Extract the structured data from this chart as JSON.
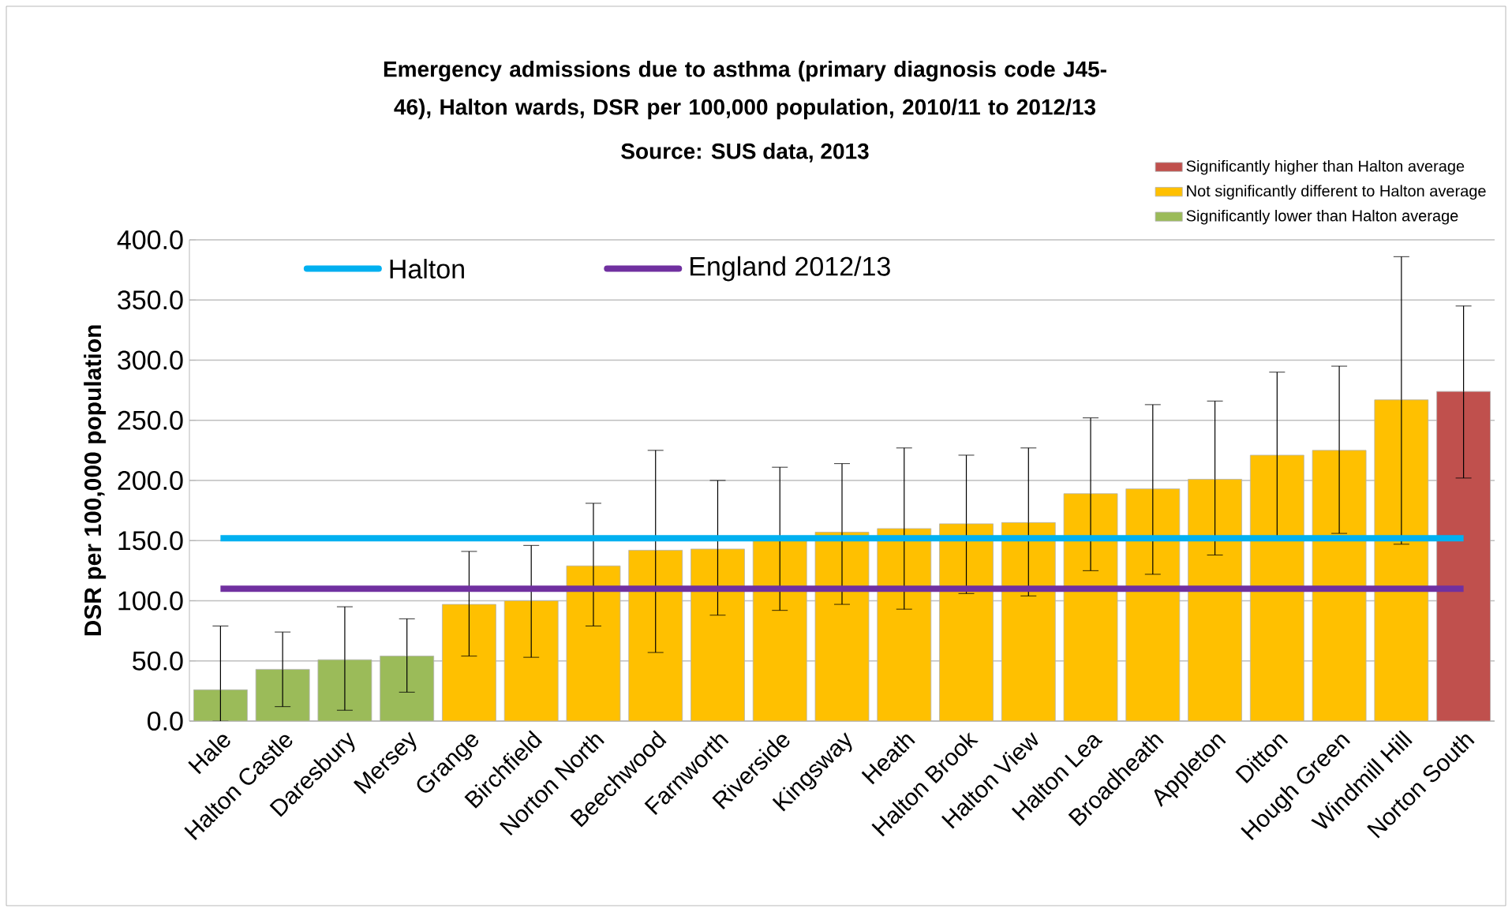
{
  "chart_data": {
    "type": "bar",
    "title": "Emergency admissions due to asthma (primary diagnosis code J45-46), Halton wards, DSR per 100,000 population, 2010/11 to 2012/13",
    "annotations": [
      "Source: SUS data, 2013"
    ],
    "ylabel": "DSR per 100,000 population",
    "categories": [
      "Hale",
      "Halton Castle",
      "Daresbury",
      "Mersey",
      "Grange",
      "Birchfield",
      "Norton North",
      "Beechwood",
      "Farnworth",
      "Riverside",
      "Kingsway",
      "Heath",
      "Halton Brook",
      "Halton View",
      "Halton Lea",
      "Broadheath",
      "Appleton",
      "Ditton",
      "Hough Green",
      "Windmill Hill",
      "Norton South"
    ],
    "series": [
      {
        "name": "Significantly higher than Halton average",
        "color": "#c0504d",
        "values": [
          null,
          null,
          null,
          null,
          null,
          null,
          null,
          null,
          null,
          null,
          null,
          null,
          null,
          null,
          null,
          null,
          null,
          null,
          null,
          null,
          274
        ],
        "errors": [
          null,
          null,
          null,
          null,
          null,
          null,
          null,
          null,
          null,
          null,
          null,
          null,
          null,
          null,
          null,
          null,
          null,
          null,
          null,
          null,
          [
            202,
            345
          ]
        ]
      },
      {
        "name": "Not significantly different to Halton average",
        "color": "#ffc000",
        "values": [
          null,
          null,
          null,
          null,
          97,
          100,
          129,
          142,
          143,
          150,
          157,
          160,
          164,
          165,
          189,
          193,
          201,
          221,
          225,
          267,
          null
        ],
        "errors": [
          null,
          null,
          null,
          null,
          [
            54,
            141
          ],
          [
            53,
            146
          ],
          [
            79,
            181
          ],
          [
            57,
            225
          ],
          [
            88,
            200
          ],
          [
            92,
            211
          ],
          [
            97,
            214
          ],
          [
            93,
            227
          ],
          [
            106,
            221
          ],
          [
            104,
            227
          ],
          [
            125,
            252
          ],
          [
            122,
            263
          ],
          [
            138,
            266
          ],
          [
            152,
            290
          ],
          [
            156,
            295
          ],
          [
            147,
            386
          ],
          null
        ]
      },
      {
        "name": "Significantly lower than Halton average",
        "color": "#9bbb59",
        "values": [
          26,
          43,
          51,
          54,
          null,
          null,
          null,
          null,
          null,
          null,
          null,
          null,
          null,
          null,
          null,
          null,
          null,
          null,
          null,
          null,
          null
        ],
        "errors": [
          [
            0,
            79
          ],
          [
            12,
            74
          ],
          [
            9,
            95
          ],
          [
            24,
            85
          ],
          null,
          null,
          null,
          null,
          null,
          null,
          null,
          null,
          null,
          null,
          null,
          null,
          null,
          null,
          null,
          null,
          null
        ]
      },
      {
        "name": "Halton",
        "type": "line",
        "color": "#00b0f0",
        "values": [
          152,
          152,
          152,
          152,
          152,
          152,
          152,
          152,
          152,
          152,
          152,
          152,
          152,
          152,
          152,
          152,
          152,
          152,
          152,
          152,
          152
        ]
      },
      {
        "name": "England 2012/13",
        "type": "line",
        "color": "#7030a0",
        "values": [
          110,
          110,
          110,
          110,
          110,
          110,
          110,
          110,
          110,
          110,
          110,
          110,
          110,
          110,
          110,
          110,
          110,
          110,
          110,
          110,
          110
        ]
      }
    ],
    "ylim": [
      0,
      400
    ],
    "yticks": [
      {
        "value": 0,
        "label": "0.0"
      },
      {
        "value": 50,
        "label": "50.0"
      },
      {
        "value": 100,
        "label": "100.0"
      },
      {
        "value": 150,
        "label": "150.0"
      },
      {
        "value": 200,
        "label": "200.0"
      },
      {
        "value": 250,
        "label": "250.0"
      },
      {
        "value": 300,
        "label": "300.0"
      },
      {
        "value": 350,
        "label": "350.0"
      },
      {
        "value": 400,
        "label": "400.0"
      }
    ],
    "grid": "y",
    "legend": "top right",
    "stacked": true
  }
}
